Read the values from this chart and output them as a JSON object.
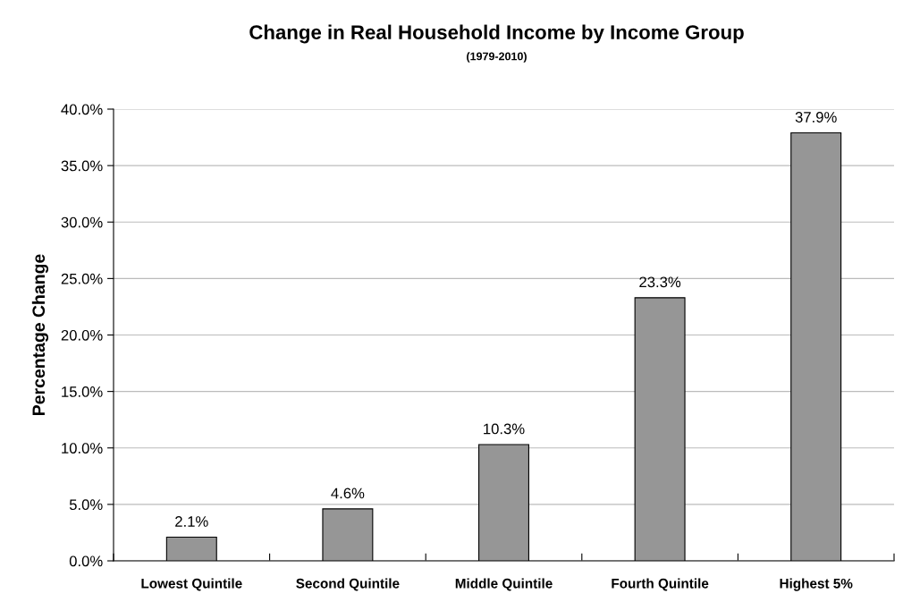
{
  "chart_data": {
    "type": "bar",
    "title": "Change in Real Household Income by Income Group",
    "subtitle": "(1979-2010)",
    "ylabel": "Percentage Change",
    "categories": [
      "Lowest Quintile",
      "Second Quintile",
      "Middle Quintile",
      "Fourth Quintile",
      "Highest 5%"
    ],
    "values": [
      2.1,
      4.6,
      10.3,
      23.3,
      37.9
    ],
    "value_labels": [
      "2.1%",
      "4.6%",
      "10.3%",
      "23.3%",
      "37.9%"
    ],
    "color": "#969696",
    "ylim": [
      0,
      40
    ],
    "yticks": [
      {
        "value": 0,
        "label": "0.0%"
      },
      {
        "value": 5,
        "label": "5.0%"
      },
      {
        "value": 10,
        "label": "10.0%"
      },
      {
        "value": 15,
        "label": "15.0%"
      },
      {
        "value": 20,
        "label": "20.0%"
      },
      {
        "value": 25,
        "label": "25.0%"
      },
      {
        "value": 30,
        "label": "30.0%"
      },
      {
        "value": 35,
        "label": "35.0%"
      },
      {
        "value": 40,
        "label": "40.0%"
      }
    ],
    "grid": "y",
    "legend": false
  }
}
